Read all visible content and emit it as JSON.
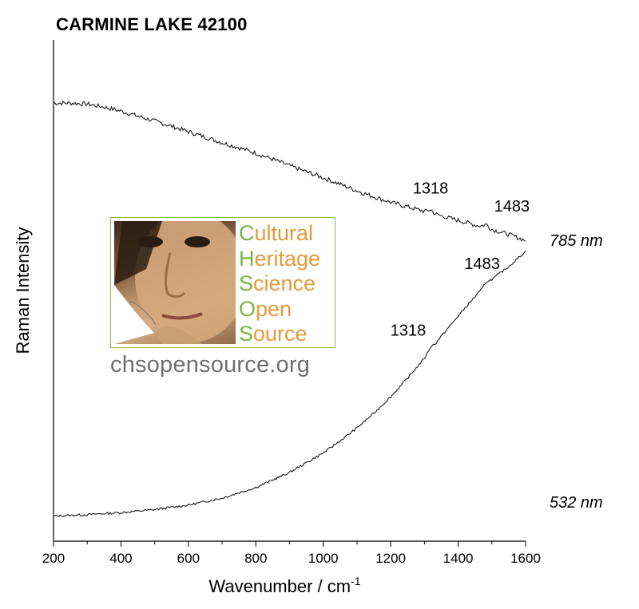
{
  "chart_data": {
    "type": "line",
    "title": "CARMINE LAKE 42100",
    "xlabel": "Wavenumber / cm",
    "xlabel_superscript": "-1",
    "ylabel": "Raman Intensity",
    "xlim": [
      200,
      1600
    ],
    "x_ticks": [
      200,
      400,
      600,
      800,
      1000,
      1200,
      1400,
      1600
    ],
    "y_ticks_shown": false,
    "grid": false,
    "series": [
      {
        "name": "785 nm",
        "x": [
          200,
          250,
          300,
          350,
          400,
          450,
          500,
          550,
          600,
          650,
          700,
          750,
          800,
          850,
          900,
          950,
          1000,
          1050,
          1100,
          1150,
          1200,
          1250,
          1300,
          1318,
          1350,
          1400,
          1450,
          1483,
          1500,
          1550,
          1600
        ],
        "y": [
          0.874,
          0.874,
          0.872,
          0.866,
          0.858,
          0.848,
          0.838,
          0.828,
          0.817,
          0.806,
          0.795,
          0.785,
          0.774,
          0.762,
          0.749,
          0.737,
          0.725,
          0.712,
          0.699,
          0.687,
          0.676,
          0.667,
          0.658,
          0.655,
          0.649,
          0.64,
          0.631,
          0.626,
          0.622,
          0.612,
          0.6
        ],
        "peaks": [
          1318,
          1483
        ]
      },
      {
        "name": "532 nm",
        "x": [
          200,
          300,
          400,
          500,
          600,
          700,
          800,
          900,
          1000,
          1050,
          1100,
          1150,
          1200,
          1250,
          1300,
          1318,
          1350,
          1400,
          1450,
          1483,
          1500,
          1550,
          1600
        ],
        "y": [
          0.05,
          0.053,
          0.057,
          0.063,
          0.072,
          0.086,
          0.107,
          0.137,
          0.176,
          0.2,
          0.226,
          0.255,
          0.288,
          0.325,
          0.365,
          0.381,
          0.409,
          0.449,
          0.488,
          0.511,
          0.522,
          0.548,
          0.578
        ],
        "peaks": [
          1318,
          1483
        ]
      }
    ],
    "peak_labels": [
      {
        "series": "785 nm",
        "text": "1318",
        "x": 1318
      },
      {
        "series": "785 nm",
        "text": "1483",
        "x": 1483
      },
      {
        "series": "532 nm",
        "text": "1483",
        "x": 1483
      },
      {
        "series": "532 nm",
        "text": "1318",
        "x": 1318
      }
    ]
  },
  "logo": {
    "lines": [
      {
        "initial": "C",
        "rest": "ultural"
      },
      {
        "initial": "H",
        "rest": "eritage"
      },
      {
        "initial": "S",
        "rest": "cience"
      },
      {
        "initial": "O",
        "rest": "pen"
      },
      {
        "initial": "S",
        "rest": "ource"
      }
    ],
    "url": "chsopensource.org",
    "colors": {
      "initials": "#7cb342",
      "text": "#e39a3a",
      "border": "#8cba4a",
      "url": "#6f6f6f"
    }
  }
}
